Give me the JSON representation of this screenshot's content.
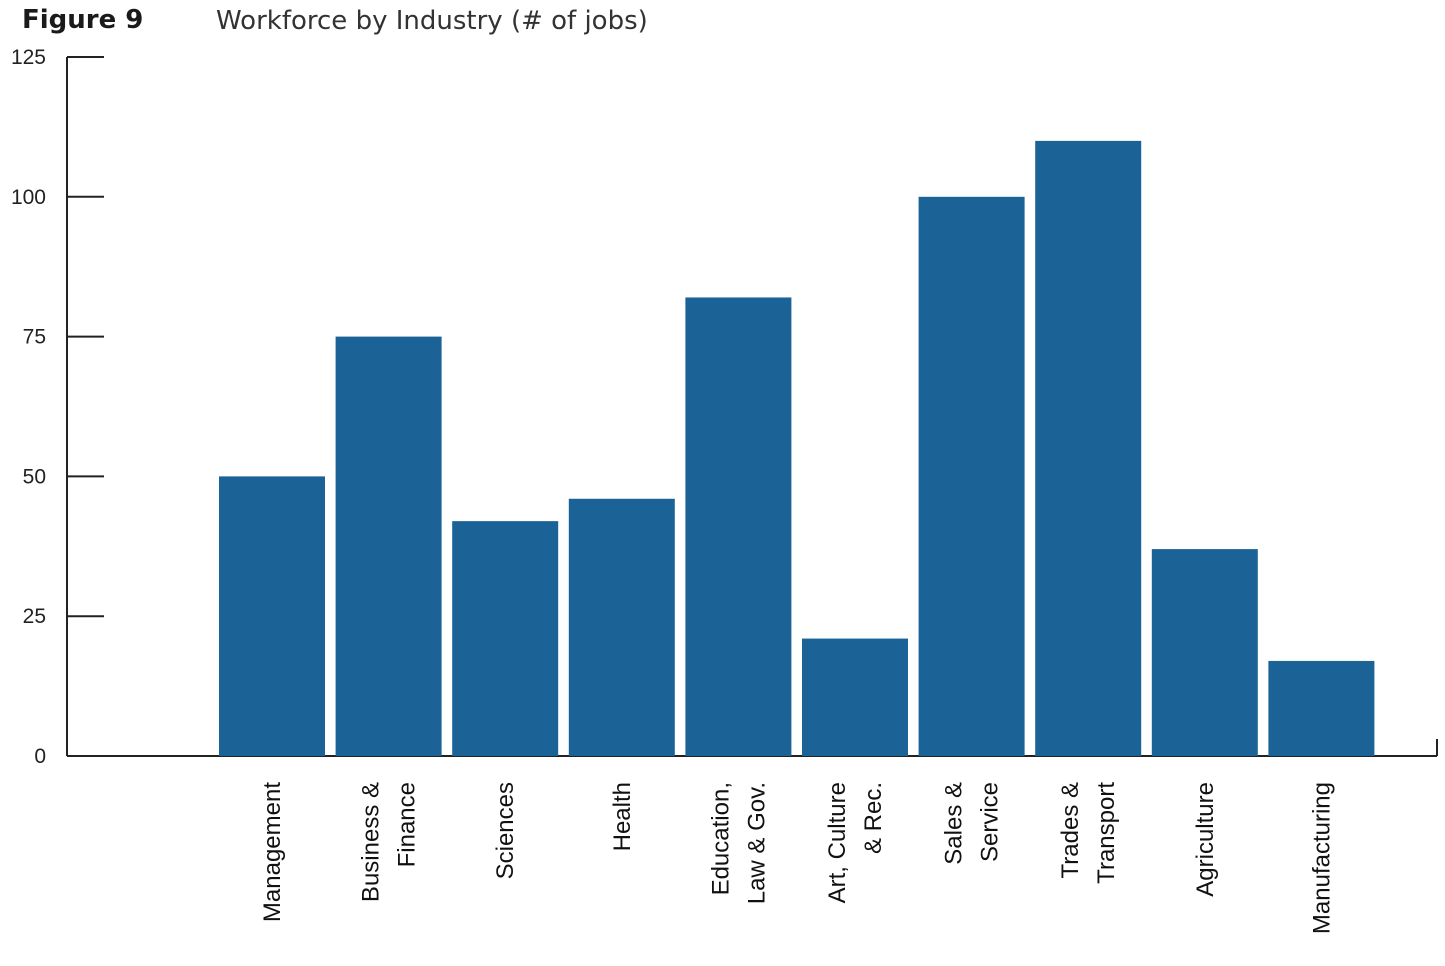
{
  "figure_label": "Figure 9",
  "chart_data": {
    "type": "bar",
    "title": "Workforce by Industry (# of jobs)",
    "xlabel": "",
    "ylabel": "",
    "ylim": [
      0,
      125
    ],
    "yticks": [
      0,
      25,
      50,
      75,
      100,
      125
    ],
    "grid": false,
    "bar_color": "#1b6296",
    "categories": [
      [
        "Management"
      ],
      [
        "Business &",
        "Finance"
      ],
      [
        "Sciences"
      ],
      [
        "Health"
      ],
      [
        "Education,",
        "Law & Gov."
      ],
      [
        "Art, Culture",
        "& Rec."
      ],
      [
        "Sales &",
        "Service"
      ],
      [
        "Trades &",
        "Transport"
      ],
      [
        "Agriculture"
      ],
      [
        "Manufacturing"
      ]
    ],
    "values": [
      50,
      75,
      42,
      46,
      82,
      21,
      100,
      110,
      37,
      17
    ]
  }
}
